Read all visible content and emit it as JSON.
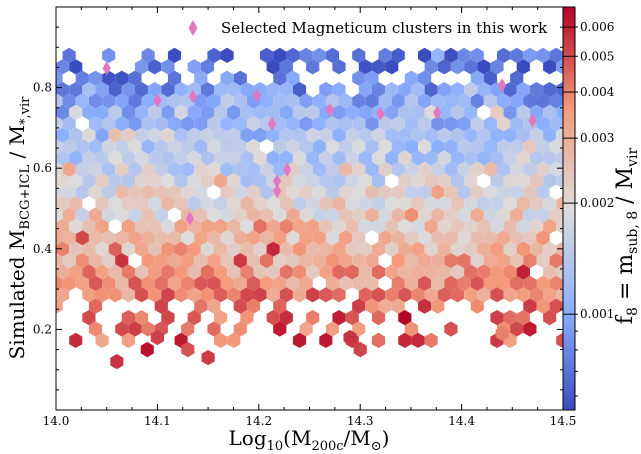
{
  "chart_data": {
    "type": "heatmap",
    "subtype": "hexbin",
    "xlabel_main": "Log",
    "xlabel_sub": "10",
    "xlabel_rest": "(M",
    "xlabel_sub2": "200c",
    "xlabel_tail": "/M",
    "xlabel_sub3": "⊙",
    "xlabel_end": ")",
    "ylabel_main": "Simulated M",
    "ylabel_sub": "BCG+ICL",
    "ylabel_mid": " / M",
    "ylabel_sub2": "*,vir",
    "colorbar_label_main": "f",
    "colorbar_label_sub": "8",
    "colorbar_label_mid": " = m",
    "colorbar_label_sub2": "sub, 8",
    "colorbar_label_mid2": " / M",
    "colorbar_label_sub3": "vir",
    "xlim": [
      14.0,
      14.5
    ],
    "ylim": [
      0.0,
      1.0
    ],
    "x_ticks": [
      "14.0",
      "14.1",
      "14.2",
      "14.3",
      "14.4",
      "14.5"
    ],
    "y_ticks": [
      "0.2",
      "0.4",
      "0.6",
      "0.8"
    ],
    "colorbar": {
      "scale": "log",
      "range": [
        0.00055,
        0.0068
      ],
      "ticks": [
        "0.001",
        "0.002",
        "0.003",
        "0.004",
        "0.005",
        "0.006"
      ],
      "colormap": "coolwarm"
    },
    "legend": {
      "placement": "top-right",
      "label": "Selected Magneticum clusters in this work",
      "marker_color": "#e377c2"
    },
    "selected_clusters": [
      {
        "x": 14.05,
        "y": 0.848
      },
      {
        "x": 14.1,
        "y": 0.768
      },
      {
        "x": 14.135,
        "y": 0.778
      },
      {
        "x": 14.132,
        "y": 0.475
      },
      {
        "x": 14.198,
        "y": 0.78
      },
      {
        "x": 14.213,
        "y": 0.71
      },
      {
        "x": 14.218,
        "y": 0.568
      },
      {
        "x": 14.218,
        "y": 0.543
      },
      {
        "x": 14.228,
        "y": 0.596
      },
      {
        "x": 14.27,
        "y": 0.745
      },
      {
        "x": 14.32,
        "y": 0.735
      },
      {
        "x": 14.376,
        "y": 0.738
      },
      {
        "x": 14.44,
        "y": 0.806
      },
      {
        "x": 14.47,
        "y": 0.718
      }
    ],
    "hexbin_trend": [
      {
        "y": 0.85,
        "f8": 0.00065
      },
      {
        "y": 0.75,
        "f8": 0.0011
      },
      {
        "y": 0.6,
        "f8": 0.0016
      },
      {
        "y": 0.45,
        "f8": 0.0025
      },
      {
        "y": 0.3,
        "f8": 0.0036
      },
      {
        "y": 0.22,
        "f8": 0.0045
      }
    ]
  }
}
